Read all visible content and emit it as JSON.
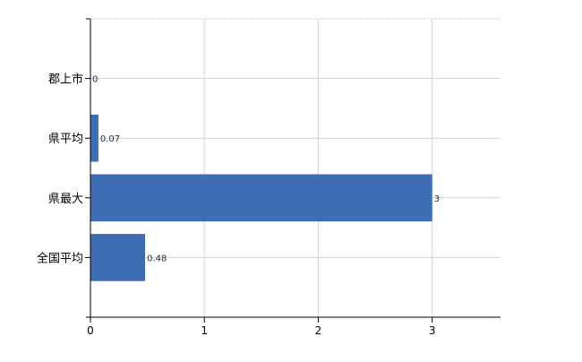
{
  "chart_data": {
    "type": "bar",
    "orientation": "horizontal",
    "categories": [
      "郡上市",
      "県平均",
      "県最大",
      "全国平均"
    ],
    "values": [
      0,
      0.07,
      3,
      0.48
    ],
    "data_labels": [
      "0",
      "0.07",
      "3",
      "0.48"
    ],
    "x_ticks": [
      "0",
      "1",
      "2",
      "3"
    ],
    "xlim": [
      0,
      3.6
    ],
    "grid": true,
    "bar_color": "#3e6db3",
    "label_color": "#1a2a4a"
  }
}
